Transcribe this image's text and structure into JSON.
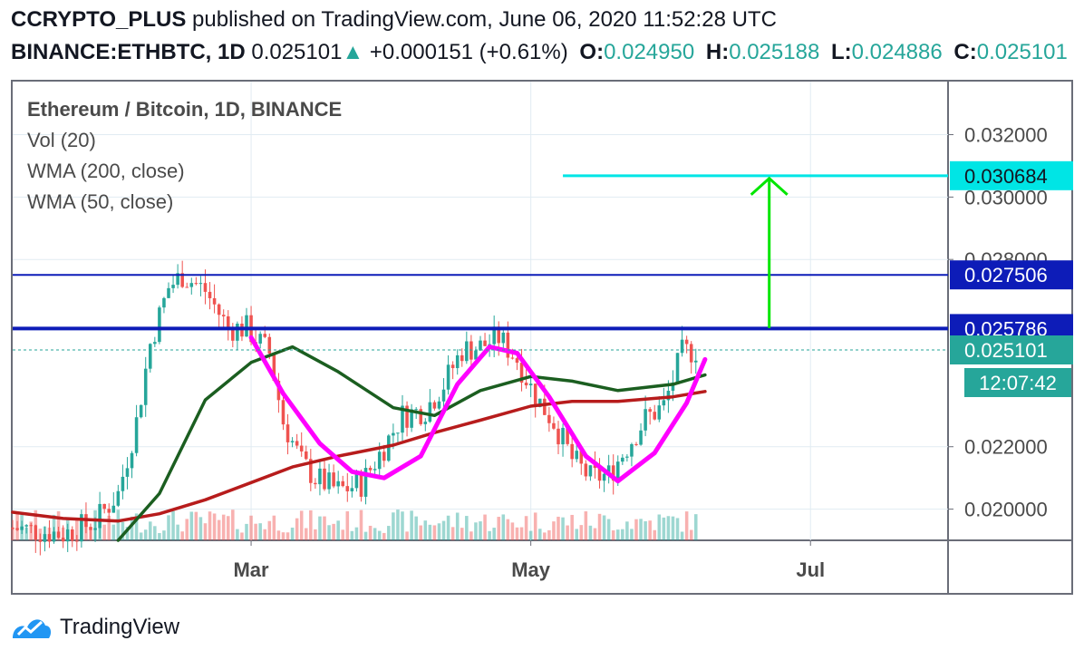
{
  "header": {
    "line1_author": "CCRYPTO_PLUS",
    "line1_rest": " published on TradingView.com, June 06, 2020 11:52:28 UTC",
    "symbol": "BINANCE:ETHBTC, 1D",
    "last": "0.025101",
    "arrow": "▲",
    "change": "+0.000151 (+0.61%)",
    "o_label": "O:",
    "o_value": "0.024950",
    "h_label": "H:",
    "h_value": "0.025188",
    "l_label": "L:",
    "l_value": "0.024886",
    "c_label": "C:",
    "c_value": "0.025101"
  },
  "legend": {
    "title": "Ethereum / Bitcoin, 1D, BINANCE",
    "vol": "Vol (20)",
    "wma200": "WMA (200, close)",
    "wma50": "WMA (50, close)"
  },
  "brand": {
    "name": "TradingView"
  },
  "colors": {
    "up": "#26a69a",
    "down": "#ef5350",
    "wma200": "#b71c1c",
    "wma50": "#1b5e20",
    "pattern": "#ff00ff",
    "target": "#00e5e5",
    "arrow": "#00e600",
    "level": "#0d1cb8",
    "grid": "#e1ecf2"
  },
  "chart_data": {
    "type": "candlestick",
    "title": "Ethereum / Bitcoin, 1D, BINANCE",
    "xlabel": "",
    "ylabel": "",
    "ylim": [
      0.019,
      0.0337
    ],
    "date_range": [
      "2020-01-09",
      "2020-07-31"
    ],
    "last_candle_date": "2020-06-06",
    "x_ticks": [
      {
        "label": "Mar",
        "date": "2020-03-01"
      },
      {
        "label": "May",
        "date": "2020-05-01"
      },
      {
        "label": "Jul",
        "date": "2020-07-01"
      }
    ],
    "y_ticks": [
      0.02,
      0.022,
      0.028,
      0.03,
      0.032
    ],
    "y_tick_labels": [
      "0.020000",
      "0.022000",
      "0.028000",
      "0.030000",
      "0.032000"
    ],
    "last_price": 0.025101,
    "countdown": "12:07:42",
    "levels": [
      {
        "name": "target",
        "value": 0.030684,
        "label": "0.030684",
        "from": "2020-05-08",
        "to": "2020-07-31"
      },
      {
        "name": "resistance",
        "value": 0.027506,
        "label": "0.027506",
        "from": "2020-01-09",
        "to": "2020-07-31"
      },
      {
        "name": "neckline",
        "value": 0.025786,
        "label": "0.025786",
        "from": "2020-01-09",
        "to": "2020-07-31"
      }
    ],
    "arrow": {
      "date": "2020-06-22",
      "from": 0.0258,
      "to": 0.0306
    },
    "series": [
      {
        "name": "WMA (200, close)",
        "x": [
          "2020-01-09",
          "2020-01-20",
          "2020-02-01",
          "2020-02-10",
          "2020-02-20",
          "2020-03-01",
          "2020-03-10",
          "2020-03-20",
          "2020-04-01",
          "2020-04-10",
          "2020-04-20",
          "2020-05-01",
          "2020-05-10",
          "2020-05-20",
          "2020-06-01",
          "2020-06-08"
        ],
        "values": [
          0.0199,
          0.0197,
          0.01962,
          0.01985,
          0.0203,
          0.02085,
          0.02135,
          0.0217,
          0.02205,
          0.02245,
          0.02285,
          0.0233,
          0.02345,
          0.02345,
          0.0236,
          0.02377
        ]
      },
      {
        "name": "WMA (50, close)",
        "x": [
          "2020-02-01",
          "2020-02-10",
          "2020-02-20",
          "2020-03-01",
          "2020-03-10",
          "2020-03-20",
          "2020-04-01",
          "2020-04-10",
          "2020-04-20",
          "2020-05-01",
          "2020-05-10",
          "2020-05-20",
          "2020-06-01",
          "2020-06-08"
        ],
        "values": [
          0.019,
          0.0205,
          0.0235,
          0.0247,
          0.0252,
          0.0244,
          0.02325,
          0.023,
          0.0238,
          0.02425,
          0.0241,
          0.0238,
          0.024,
          0.0243
        ]
      },
      {
        "name": "Pattern",
        "x": [
          "2020-03-01",
          "2020-03-08",
          "2020-03-16",
          "2020-03-23",
          "2020-03-30",
          "2020-04-07",
          "2020-04-15",
          "2020-04-22",
          "2020-04-28",
          "2020-05-05",
          "2020-05-13",
          "2020-05-20",
          "2020-05-28",
          "2020-06-04",
          "2020-06-08"
        ],
        "values": [
          0.0255,
          0.0237,
          0.0221,
          0.0212,
          0.021,
          0.0217,
          0.024,
          0.0252,
          0.025,
          0.0236,
          0.0217,
          0.0209,
          0.0218,
          0.0234,
          0.0248
        ]
      },
      {
        "name": "Close",
        "x": [
          "2020-01-09",
          "2020-01-20",
          "2020-01-27",
          "2020-02-01",
          "2020-02-05",
          "2020-02-08",
          "2020-02-12",
          "2020-02-15",
          "2020-02-20",
          "2020-02-25",
          "2020-02-29",
          "2020-03-05",
          "2020-03-08",
          "2020-03-12",
          "2020-03-15",
          "2020-03-20",
          "2020-03-25",
          "2020-03-30",
          "2020-04-03",
          "2020-04-08",
          "2020-04-12",
          "2020-04-16",
          "2020-04-20",
          "2020-04-24",
          "2020-04-28",
          "2020-05-02",
          "2020-05-06",
          "2020-05-10",
          "2020-05-14",
          "2020-05-18",
          "2020-05-22",
          "2020-05-26",
          "2020-05-30",
          "2020-06-03",
          "2020-06-06"
        ],
        "values": [
          0.0194,
          0.0192,
          0.0196,
          0.0205,
          0.0228,
          0.0253,
          0.0271,
          0.0275,
          0.027,
          0.0258,
          0.0258,
          0.025,
          0.0228,
          0.0215,
          0.021,
          0.0206,
          0.0208,
          0.022,
          0.023,
          0.0232,
          0.024,
          0.0251,
          0.0252,
          0.0255,
          0.0248,
          0.0236,
          0.0228,
          0.0216,
          0.021,
          0.0211,
          0.022,
          0.0229,
          0.0233,
          0.025,
          0.0251
        ]
      }
    ]
  }
}
